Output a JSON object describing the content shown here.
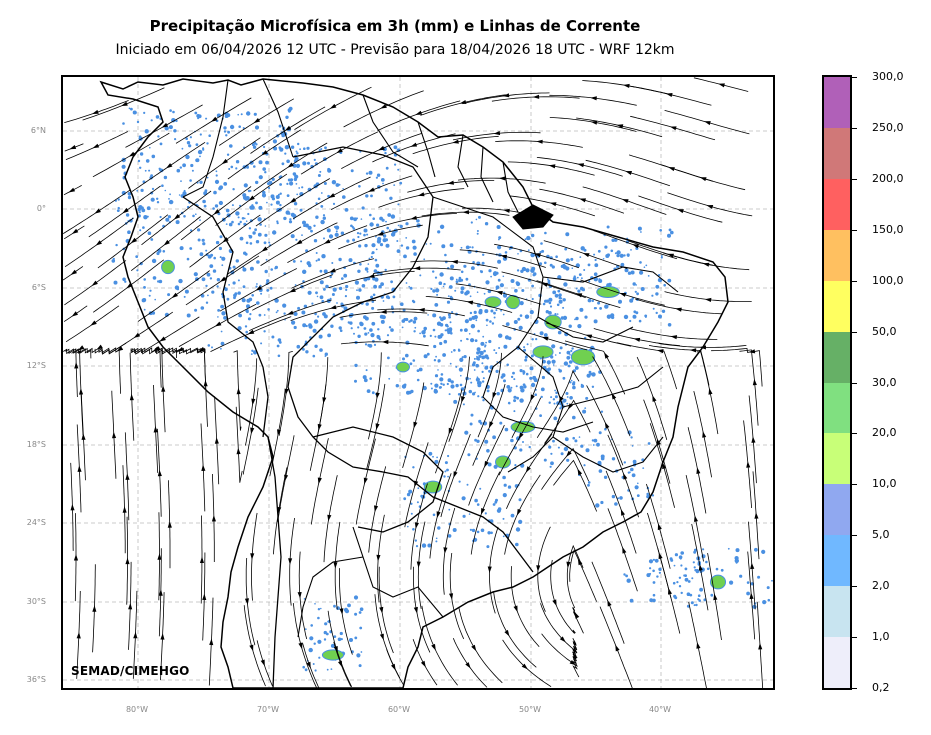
{
  "title": "Precipitação Microfísica em 3h (mm) e Linhas de Corrente",
  "subtitle": "Iniciado em 06/04/2026 12 UTC - Previsão para 18/04/2026 18 UTC - WRF 12km",
  "credit": "SEMAD/CIMEHGO",
  "latitude_labels": [
    "6°N",
    "0°",
    "6°S",
    "12°S",
    "18°S",
    "24°S",
    "30°S",
    "36°S"
  ],
  "longitude_labels": [
    "80°W",
    "70°W",
    "60°W",
    "50°W",
    "40°W"
  ],
  "colorbar": {
    "labels": [
      "300,0",
      "250,0",
      "200,0",
      "150,0",
      "100,0",
      "50,0",
      "30,0",
      "20,0",
      "10,0",
      "5,0",
      "2,0",
      "1,0",
      "0,2"
    ],
    "colors": [
      "#b060b8",
      "#d07878",
      "#ff6060",
      "#ffc060",
      "#ffff60",
      "#66b066",
      "#80e080",
      "#c8ff78",
      "#90a8f0",
      "#70b8ff",
      "#c8e4f0",
      "#eeeefa"
    ]
  },
  "map_style": {
    "gridlines": true,
    "grid_color": "#bbbbbb",
    "streamline_color": "#000000",
    "boundary_color": "#000000",
    "light_precip_color": "#4a90e2",
    "heavy_precip_color": "#70d050"
  }
}
